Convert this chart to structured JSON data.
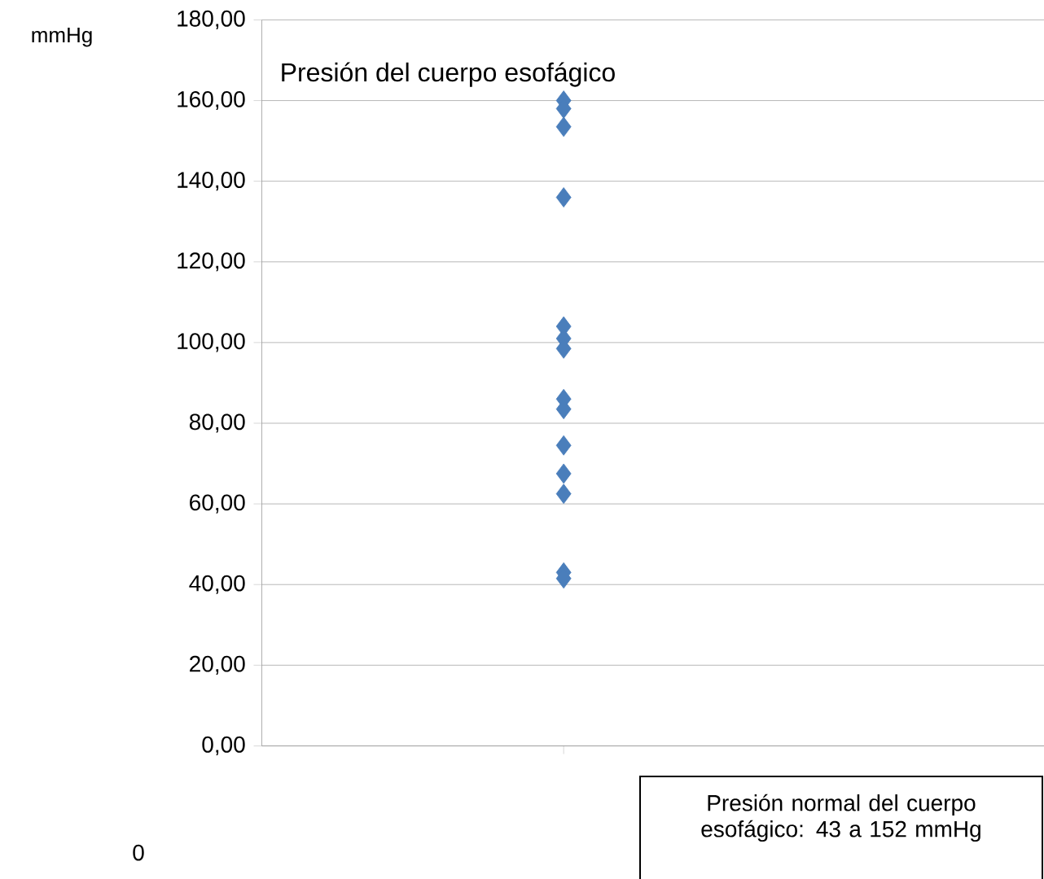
{
  "chart_data": {
    "type": "scatter",
    "title": "Presión del cuerpo esofágico",
    "ylabel": "mmHg",
    "annotations": [
      "Presión normal del cuerpo esofágico: 43 a 152 mmHg",
      "0"
    ],
    "categories": [
      null
    ],
    "series": [
      {
        "color": "#4a7ebb",
        "values": [
          160
        ]
      },
      {
        "color": "#4a7ebb",
        "values": [
          158
        ]
      },
      {
        "color": "#4a7ebb",
        "values": [
          153.5
        ]
      },
      {
        "color": "#4a7ebb",
        "values": [
          136
        ]
      },
      {
        "color": "#4a7ebb",
        "values": [
          104
        ]
      },
      {
        "color": "#4a7ebb",
        "values": [
          101
        ]
      },
      {
        "color": "#4a7ebb",
        "values": [
          98.5
        ]
      },
      {
        "color": "#4a7ebb",
        "values": [
          86
        ]
      },
      {
        "color": "#4a7ebb",
        "values": [
          83.5
        ]
      },
      {
        "color": "#4a7ebb",
        "values": [
          74.5
        ]
      },
      {
        "color": "#4a7ebb",
        "values": [
          67.5
        ]
      },
      {
        "color": "#4a7ebb",
        "values": [
          62.5
        ]
      },
      {
        "color": "#4a7ebb",
        "values": [
          43
        ]
      },
      {
        "color": "#4a7ebb",
        "values": [
          41.5
        ]
      }
    ],
    "marker": "diamond",
    "grid": "y",
    "ylim": [
      0,
      180
    ],
    "yticks": [
      {
        "value": 0,
        "label": "0,00"
      },
      {
        "value": 20,
        "label": "20,00"
      },
      {
        "value": 40,
        "label": "40,00"
      },
      {
        "value": 60,
        "label": "60,00"
      },
      {
        "value": 80,
        "label": "80,00"
      },
      {
        "value": 100,
        "label": "100,00"
      },
      {
        "value": 120,
        "label": "120,00"
      },
      {
        "value": 140,
        "label": "140,00"
      },
      {
        "value": 160,
        "label": "160,00"
      },
      {
        "value": 180,
        "label": "180,00"
      }
    ]
  }
}
